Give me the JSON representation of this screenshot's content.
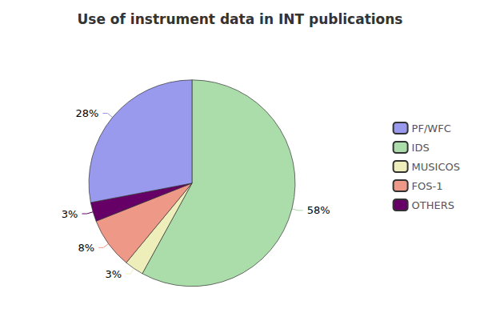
{
  "chart_data": {
    "type": "pie",
    "title": "Use of instrument data in INT publications",
    "categories": [
      "IDS",
      "MUSICOS",
      "FOS-1",
      "OTHERS",
      "PF/WFC"
    ],
    "values": [
      58,
      3,
      8,
      3,
      28
    ],
    "value_labels": [
      "58%",
      "3%",
      "8%",
      "3%",
      "28%"
    ],
    "colors": [
      "#aaddaa",
      "#eeeebb",
      "#ee9988",
      "#660066",
      "#9999ee"
    ],
    "data_labels": true,
    "legend": "right",
    "legend_order": [
      "PF/WFC",
      "IDS",
      "MUSICOS",
      "FOS-1",
      "OTHERS"
    ]
  }
}
